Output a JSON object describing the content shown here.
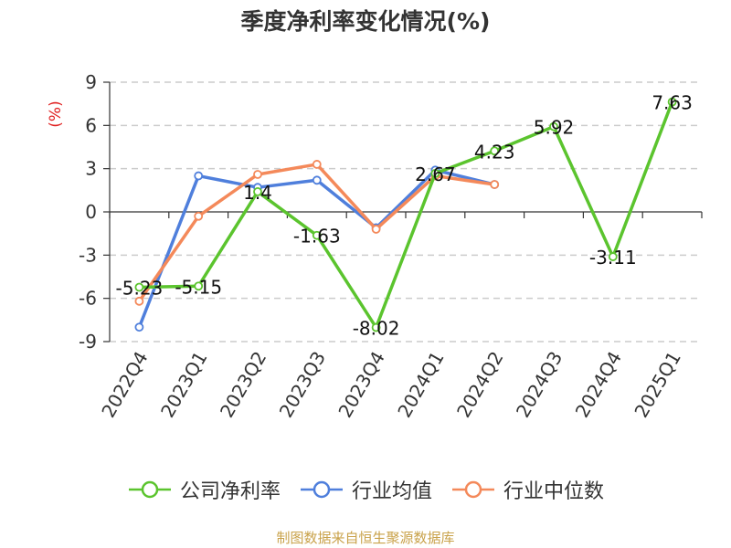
{
  "chart_data": {
    "type": "line",
    "title": "季度净利率变化情况(%)",
    "ylabel": "(%)",
    "xlabel": "",
    "categories": [
      "2022Q4",
      "2023Q1",
      "2023Q2",
      "2023Q3",
      "2023Q4",
      "2024Q1",
      "2024Q2",
      "2024Q3",
      "2024Q4",
      "2025Q1"
    ],
    "ylim": [
      -9,
      9
    ],
    "yticks": [
      9,
      6,
      3,
      0,
      -3,
      -6,
      -9
    ],
    "grid": true,
    "legend_position": "bottom",
    "series": [
      {
        "name": "公司净利率",
        "color": "#5bc42e",
        "values": [
          -5.23,
          -5.15,
          1.4,
          -1.63,
          -8.02,
          2.67,
          4.23,
          5.92,
          -3.11,
          7.63
        ],
        "labels": [
          "-5.23",
          "-5.15",
          "1.4",
          "-1.63",
          "-8.02",
          "2.67",
          "4.23",
          "5.92",
          "-3.11",
          "7.63"
        ]
      },
      {
        "name": "行业均值",
        "color": "#4f7fdc",
        "values": [
          -8.0,
          2.5,
          1.7,
          2.2,
          -1.1,
          2.9,
          1.9,
          null,
          null,
          null
        ]
      },
      {
        "name": "行业中位数",
        "color": "#f4895a",
        "values": [
          -6.2,
          -0.3,
          2.6,
          3.3,
          -1.2,
          2.5,
          1.9,
          null,
          null,
          null
        ]
      }
    ]
  },
  "ylabel_color": "#e02020",
  "source": {
    "text": "制图数据来自恒生聚源数据库",
    "color": "#c9a24a"
  }
}
